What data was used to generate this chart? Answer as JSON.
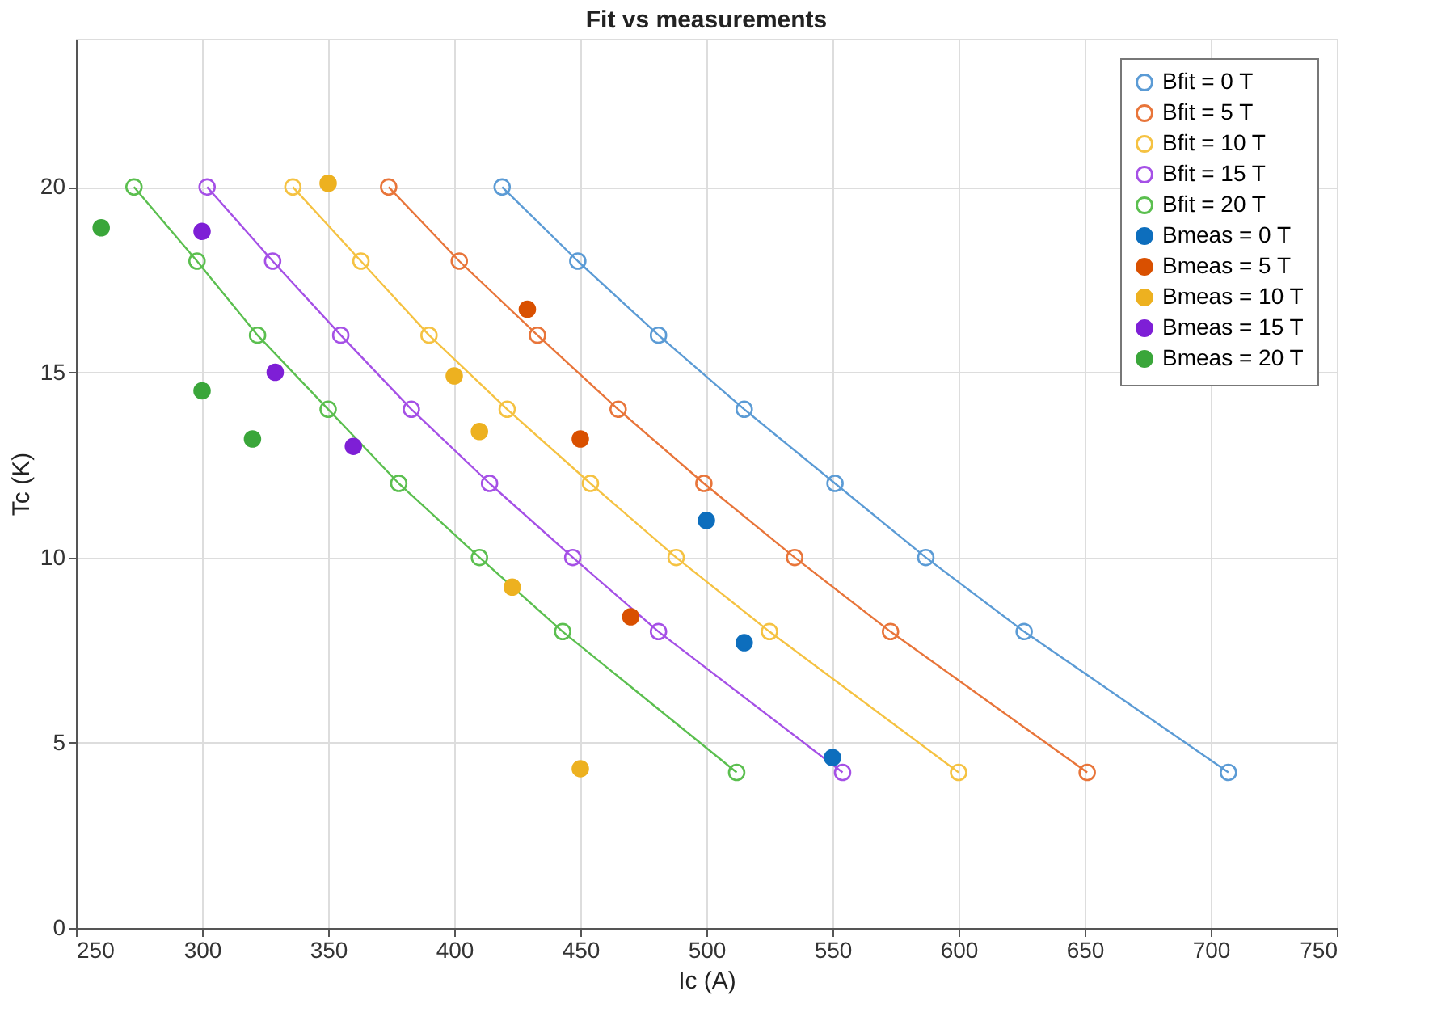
{
  "chart_data": {
    "type": "line",
    "title": "Fit vs measurements",
    "xlabel": "Ic (A)",
    "ylabel": "Tc (K)",
    "xlim": [
      250,
      750
    ],
    "xticks": [
      250,
      300,
      350,
      400,
      450,
      500,
      550,
      600,
      650,
      700,
      750
    ],
    "ylim": [
      0,
      24
    ],
    "yticks": [
      0,
      5,
      10,
      15,
      20
    ],
    "grid": true,
    "legend": "top right",
    "line_style": "solid",
    "series": [
      {
        "name": "Bfit = 0 T",
        "marker": "circle",
        "color": "#5b9bd5",
        "x": [
          419,
          449,
          481,
          515,
          551,
          587,
          626,
          707
        ],
        "values": [
          20,
          18,
          16,
          14,
          12,
          10,
          8,
          4.2
        ]
      },
      {
        "name": "Bfit = 5 T",
        "marker": "circle",
        "color": "#e8753a",
        "x": [
          374,
          402,
          433,
          465,
          499,
          535,
          573,
          651
        ],
        "values": [
          20,
          18,
          16,
          14,
          12,
          10,
          8,
          4.2
        ]
      },
      {
        "name": "Bfit = 10 T",
        "marker": "circle",
        "color": "#f5c242",
        "x": [
          336,
          363,
          390,
          421,
          454,
          488,
          525,
          600
        ],
        "values": [
          20,
          18,
          16,
          14,
          12,
          10,
          8,
          4.2
        ]
      },
      {
        "name": "Bfit = 15 T",
        "marker": "circle",
        "color": "#a550e6",
        "x": [
          302,
          328,
          355,
          383,
          414,
          447,
          481,
          554
        ],
        "values": [
          20,
          18,
          16,
          14,
          12,
          10,
          8,
          4.2
        ]
      },
      {
        "name": "Bfit = 20 T",
        "marker": "circle",
        "color": "#5bbf4f",
        "x": [
          273,
          298,
          322,
          350,
          378,
          410,
          443,
          512
        ],
        "values": [
          20,
          18,
          16,
          14,
          12,
          10,
          8,
          4.2
        ]
      },
      {
        "name": "Bmeas = 0 T",
        "type": "scatter",
        "marker": "circle",
        "color": "#0d6ebd",
        "x": [
          500,
          515,
          550
        ],
        "values": [
          11,
          7.7,
          4.6
        ]
      },
      {
        "name": "Bmeas = 5 T",
        "type": "scatter",
        "marker": "circle",
        "color": "#d95000",
        "x": [
          429,
          450,
          470
        ],
        "values": [
          16.7,
          13.2,
          8.4
        ]
      },
      {
        "name": "Bmeas = 10 T",
        "type": "scatter",
        "marker": "circle",
        "color": "#edb120",
        "x": [
          350,
          400,
          410,
          423,
          450
        ],
        "values": [
          20.1,
          14.9,
          13.4,
          9.2,
          4.3
        ]
      },
      {
        "name": "Bmeas = 15 T",
        "type": "scatter",
        "marker": "circle",
        "color": "#7e1fd6",
        "x": [
          300,
          329,
          360
        ],
        "values": [
          18.8,
          15,
          13
        ]
      },
      {
        "name": "Bmeas = 20 T",
        "type": "scatter",
        "marker": "circle",
        "color": "#3aa63a",
        "x": [
          260,
          300,
          320
        ],
        "values": [
          18.9,
          14.5,
          13.2
        ]
      }
    ]
  }
}
